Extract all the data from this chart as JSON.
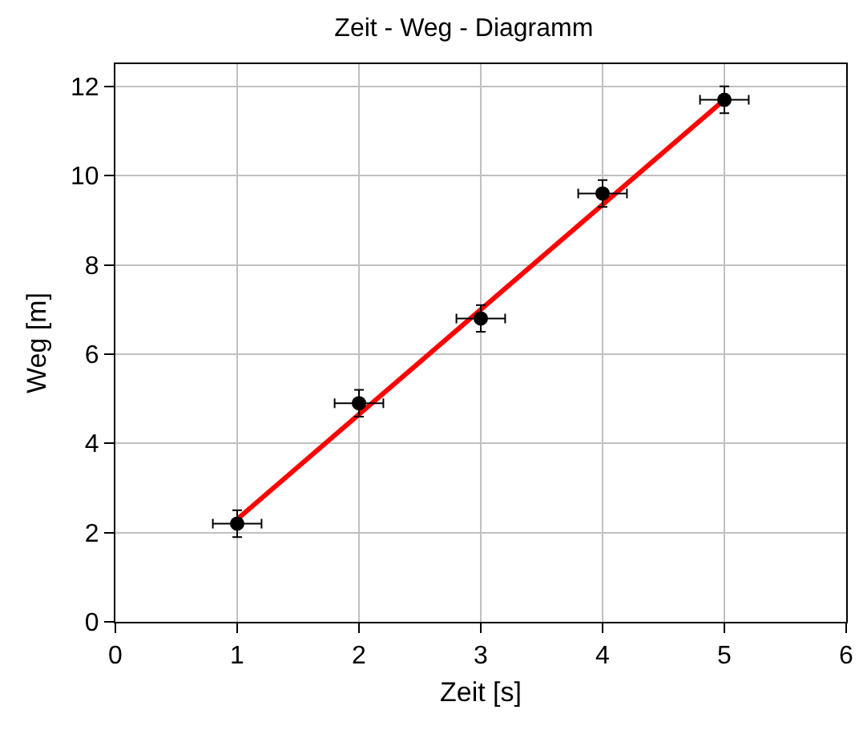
{
  "chart_data": {
    "type": "scatter",
    "title": "Zeit - Weg - Diagramm",
    "xlabel": "Zeit [s]",
    "ylabel": "Weg [m]",
    "xlim": [
      0,
      6
    ],
    "xticks": [
      0,
      1,
      2,
      3,
      4,
      5,
      6
    ],
    "ylim": [
      0,
      12.5
    ],
    "yticks": [
      0,
      2,
      4,
      6,
      8,
      10,
      12
    ],
    "grid": true,
    "series": [
      {
        "color": "#000000",
        "marker": "circle",
        "x": [
          1,
          2,
          3,
          4,
          5
        ],
        "values": [
          2.2,
          4.9,
          6.8,
          9.6,
          11.7
        ],
        "errors": [
          0.3,
          0.3,
          0.3,
          0.3,
          0.3
        ],
        "xerrors": [
          0.2,
          0.2,
          0.2,
          0.2,
          0.2
        ]
      },
      {
        "type": "line",
        "color": "#ff0000",
        "marker": "none",
        "x": [
          1,
          5
        ],
        "values": [
          2.3,
          11.7
        ]
      }
    ]
  }
}
